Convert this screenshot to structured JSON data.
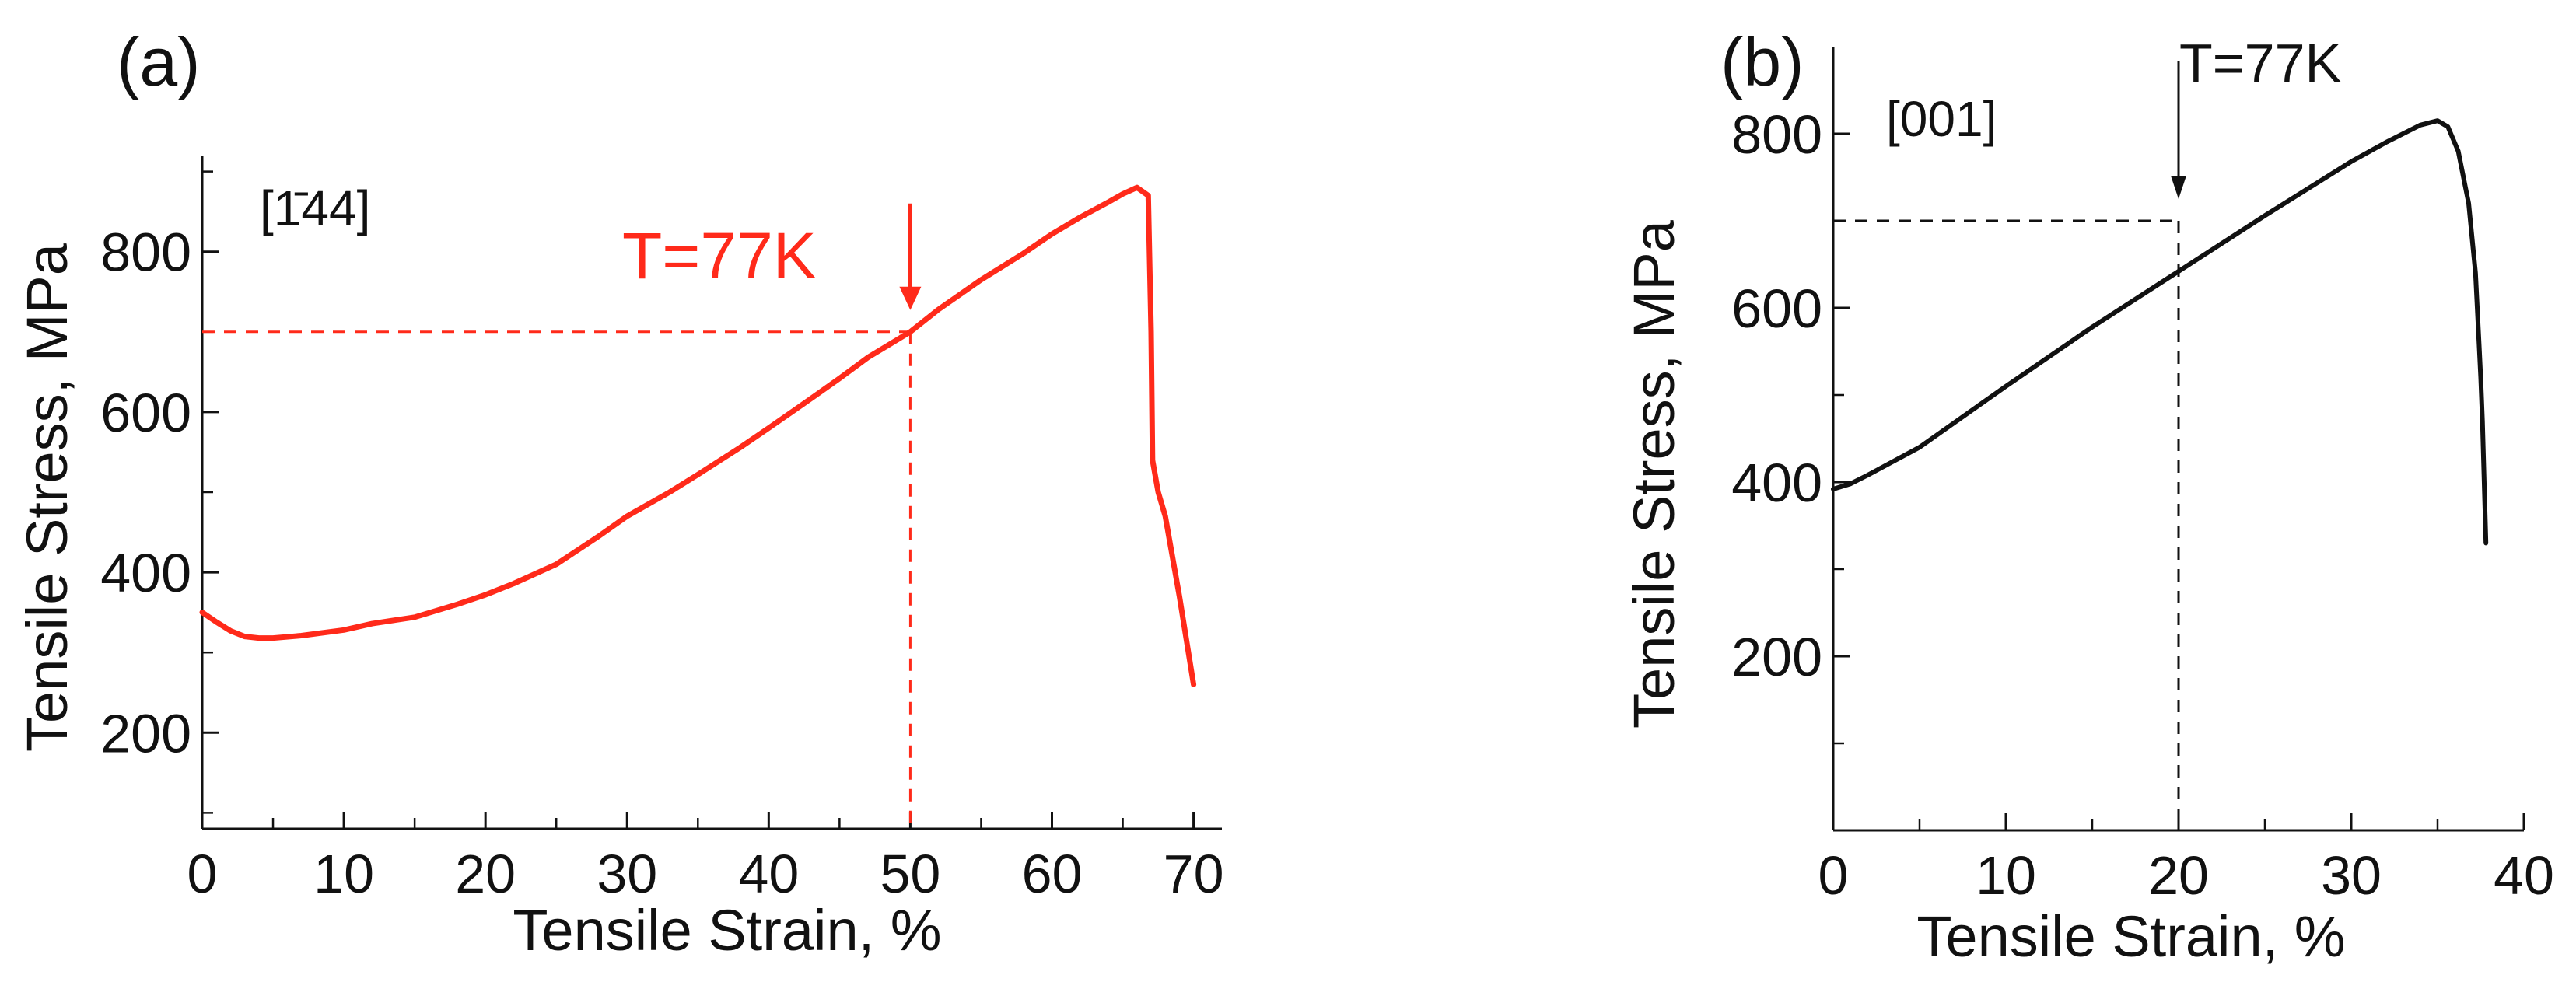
{
  "chart_data": [
    {
      "panel": "(a)",
      "type": "line",
      "xlabel": "Tensile Strain, %",
      "ylabel": "Tensile Stress, MPa",
      "xlim": [
        0,
        72
      ],
      "ylim": [
        80,
        920
      ],
      "xticks": [
        0,
        10,
        20,
        30,
        40,
        50,
        60,
        70
      ],
      "xticks_minor": [
        5,
        15,
        25,
        35,
        45,
        55,
        65
      ],
      "yticks": [
        200,
        400,
        600,
        800
      ],
      "yticks_minor": [
        100,
        300,
        500,
        700,
        900
      ],
      "orientation": "[1̄44]",
      "temperature": "T=77K",
      "color": "#ff2a1a",
      "marker": {
        "x": 50,
        "y": 700
      },
      "series": [
        {
          "x": [
            0,
            1,
            2,
            3,
            4,
            5,
            7,
            10,
            12,
            15,
            18,
            20,
            22,
            25,
            28,
            30,
            33,
            35,
            38,
            40,
            43,
            45,
            47,
            50,
            52,
            55,
            58,
            60,
            62,
            64,
            65,
            66,
            66.8,
            67,
            67.1,
            67.5,
            68,
            69,
            70
          ],
          "y": [
            350,
            338,
            327,
            320,
            318,
            318,
            321,
            328,
            336,
            344,
            360,
            372,
            386,
            410,
            445,
            470,
            500,
            522,
            556,
            580,
            617,
            642,
            668,
            700,
            728,
            765,
            798,
            822,
            843,
            862,
            872,
            880,
            870,
            700,
            540,
            500,
            470,
            370,
            260
          ]
        }
      ]
    },
    {
      "panel": "(b)",
      "type": "line",
      "xlabel": "Tensile Strain, %",
      "ylabel": "Tensile Stress, MPa",
      "xlim": [
        0,
        40
      ],
      "ylim": [
        0,
        900
      ],
      "xticks": [
        0,
        10,
        20,
        30,
        40
      ],
      "xticks_minor": [
        5,
        15,
        25,
        35
      ],
      "yticks": [
        200,
        400,
        600,
        800
      ],
      "yticks_minor": [
        100,
        300,
        500,
        700
      ],
      "orientation": "[001]",
      "temperature": "T=77K",
      "color": "#111111",
      "marker": {
        "x": 20,
        "y": 700
      },
      "series": [
        {
          "x": [
            0,
            1,
            2,
            5,
            10,
            15,
            20,
            25,
            30,
            32,
            34,
            35,
            35.6,
            36.2,
            36.8,
            37.2,
            37.4,
            37.5,
            37.6,
            37.8
          ],
          "y": [
            392,
            398,
            408,
            440,
            510,
            578,
            642,
            706,
            768,
            790,
            810,
            815,
            808,
            780,
            720,
            640,
            560,
            520,
            470,
            330
          ]
        }
      ]
    }
  ]
}
